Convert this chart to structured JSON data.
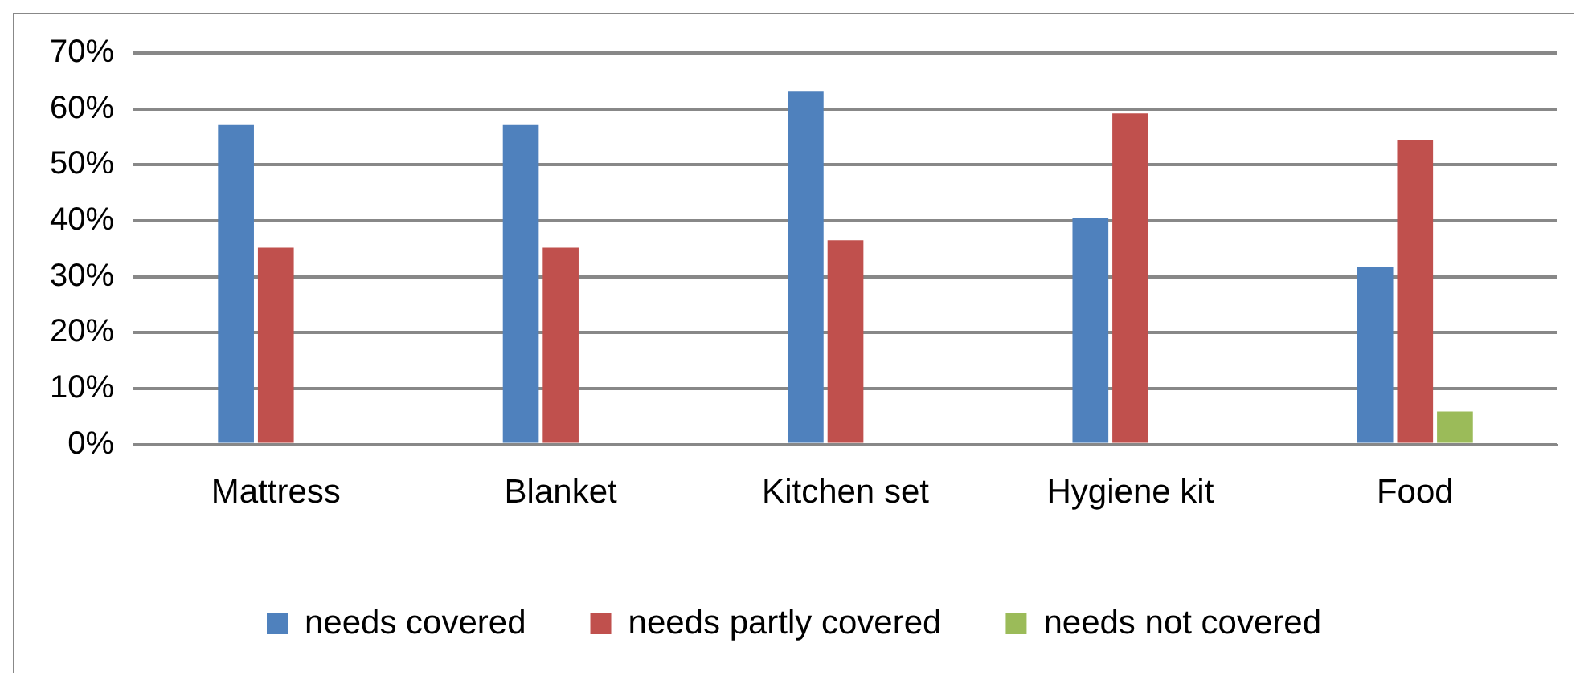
{
  "chart_data": {
    "type": "bar",
    "categories": [
      "Mattress",
      "Blanket",
      "Kitchen set",
      "Hygiene kit",
      "Food"
    ],
    "series": [
      {
        "name": "needs covered",
        "color": "#4f81bd",
        "values": [
          57.1,
          57.1,
          63.2,
          40.5,
          31.7
        ]
      },
      {
        "name": "needs partly covered",
        "color": "#c0504d",
        "values": [
          35.2,
          35.2,
          36.5,
          59.2,
          54.5
        ]
      },
      {
        "name": "needs not covered",
        "color": "#9bbb59",
        "values": [
          null,
          null,
          null,
          null,
          5.9
        ]
      }
    ],
    "ylim": [
      0,
      70
    ],
    "yticks": [
      {
        "value": 0,
        "label": "0%"
      },
      {
        "value": 10,
        "label": "10%"
      },
      {
        "value": 20,
        "label": "20%"
      },
      {
        "value": 30,
        "label": "30%"
      },
      {
        "value": 40,
        "label": "40%"
      },
      {
        "value": 50,
        "label": "50%"
      },
      {
        "value": 60,
        "label": "60%"
      },
      {
        "value": 70,
        "label": "70%"
      }
    ],
    "grid": "y",
    "legend": "bottom"
  }
}
